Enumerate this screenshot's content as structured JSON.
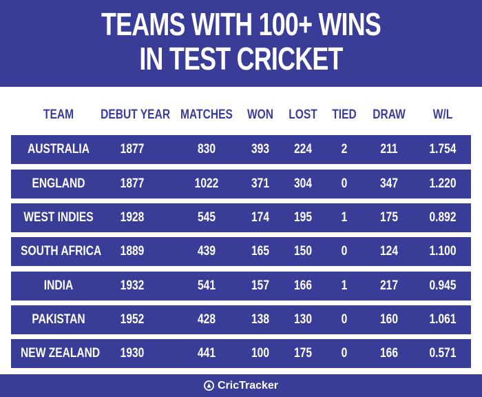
{
  "title": {
    "line1": "TEAMS WITH 100+ WINS",
    "line2": "IN TEST CRICKET"
  },
  "table": {
    "headers": [
      "TEAM",
      "DEBUT YEAR",
      "MATCHES",
      "WON",
      "LOST",
      "TIED",
      "DRAW",
      "W/L"
    ],
    "rows": [
      [
        "AUSTRALIA",
        "1877",
        "830",
        "393",
        "224",
        "2",
        "211",
        "1.754"
      ],
      [
        "ENGLAND",
        "1877",
        "1022",
        "371",
        "304",
        "0",
        "347",
        "1.220"
      ],
      [
        "WEST INDIES",
        "1928",
        "545",
        "174",
        "195",
        "1",
        "175",
        "0.892"
      ],
      [
        "SOUTH AFRICA",
        "1889",
        "439",
        "165",
        "150",
        "0",
        "124",
        "1.100"
      ],
      [
        "INDIA",
        "1932",
        "541",
        "157",
        "166",
        "1",
        "217",
        "0.945"
      ],
      [
        "PAKISTAN",
        "1952",
        "428",
        "138",
        "130",
        "0",
        "160",
        "1.061"
      ],
      [
        "NEW ZEALAND",
        "1930",
        "441",
        "100",
        "175",
        "0",
        "166",
        "0.571"
      ]
    ]
  },
  "footer": {
    "brand": "CricTracker",
    "icon": "crictracker-logo-icon"
  },
  "colors": {
    "primary": "#3a3d97",
    "background": "#ffffff",
    "text_light": "#ffffff"
  }
}
